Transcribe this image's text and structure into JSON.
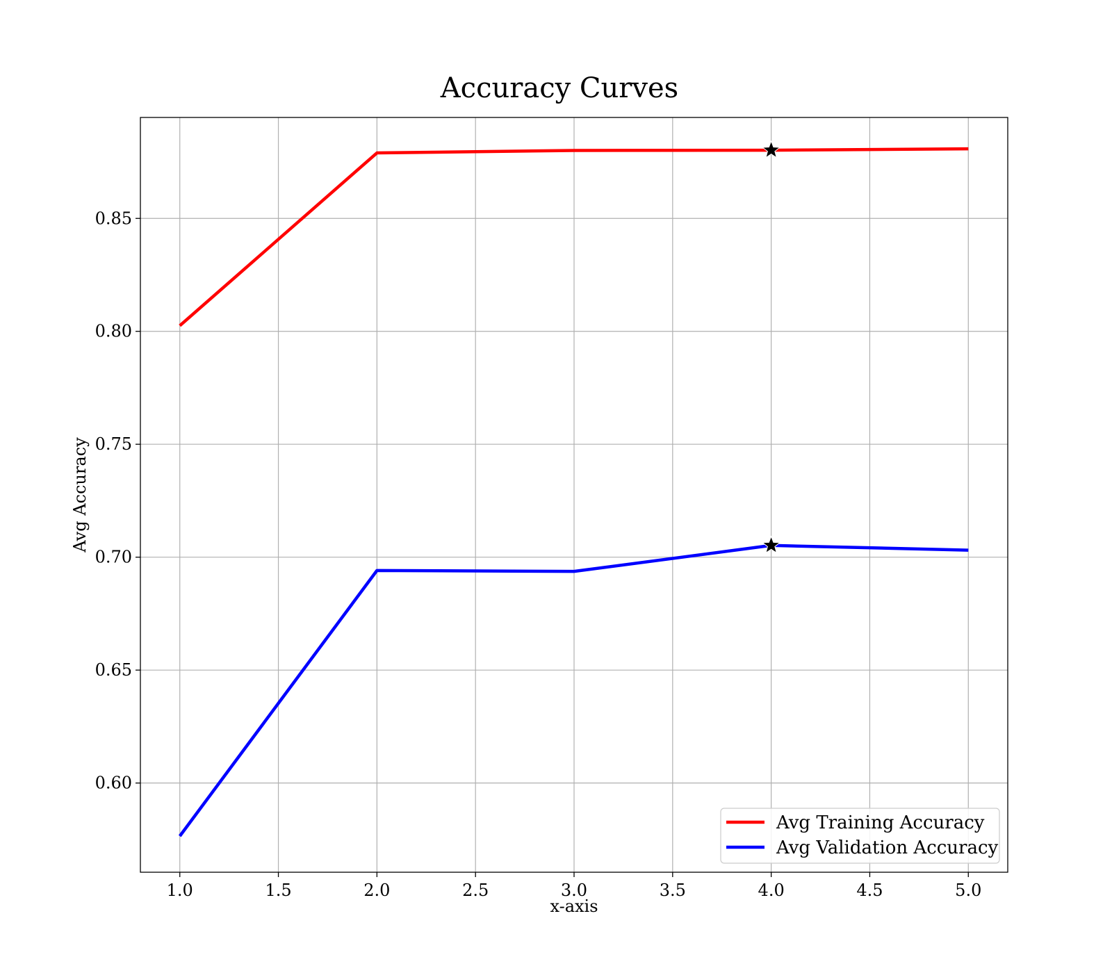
{
  "chart_data": {
    "type": "line",
    "title": "Accuracy Curves",
    "xlabel": "x-axis",
    "ylabel": "Avg Accuracy",
    "xlim": [
      0.8,
      5.2
    ],
    "ylim": [
      0.5605,
      0.8947
    ],
    "x_ticks": [
      1.0,
      1.5,
      2.0,
      2.5,
      3.0,
      3.5,
      4.0,
      4.5,
      5.0
    ],
    "x_tick_labels": [
      "1.0",
      "1.5",
      "2.0",
      "2.5",
      "3.0",
      "3.5",
      "4.0",
      "4.5",
      "5.0"
    ],
    "y_ticks": [
      0.6,
      0.65,
      0.7,
      0.75,
      0.8,
      0.85
    ],
    "y_tick_labels": [
      "0.60",
      "0.65",
      "0.70",
      "0.75",
      "0.80",
      "0.85"
    ],
    "grid": true,
    "legend_position": "lower-right",
    "series": [
      {
        "name": "Avg Training Accuracy",
        "color": "#ff0000",
        "x": [
          1,
          2,
          3,
          4,
          5
        ],
        "y": [
          0.8025,
          0.879,
          0.8801,
          0.8802,
          0.8808
        ],
        "best_marker": {
          "x": 4,
          "y": 0.8802,
          "symbol": "star"
        }
      },
      {
        "name": "Avg Validation Accuracy",
        "color": "#0000ff",
        "x": [
          1,
          2,
          3,
          4,
          5
        ],
        "y": [
          0.5765,
          0.6941,
          0.6937,
          0.7052,
          0.7031
        ],
        "best_marker": {
          "x": 4,
          "y": 0.7052,
          "symbol": "star"
        }
      }
    ]
  }
}
